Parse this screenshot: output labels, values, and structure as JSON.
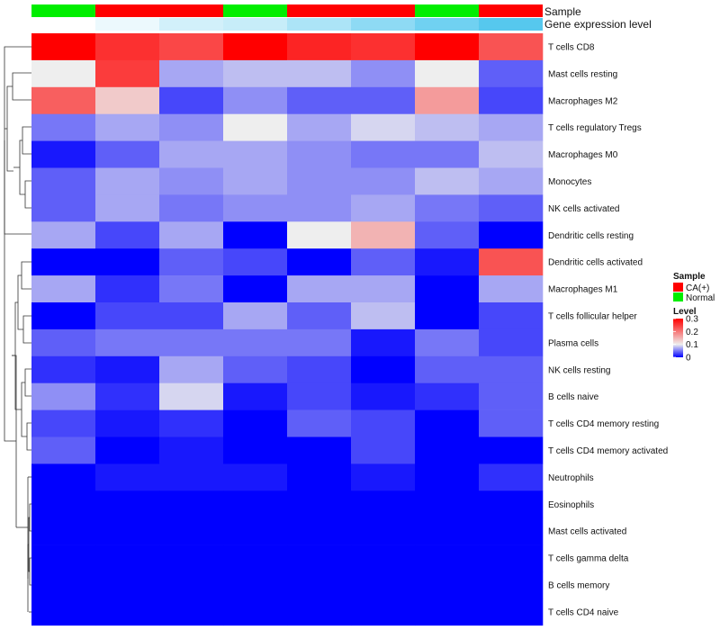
{
  "chart_data": {
    "type": "heatmap",
    "annotations": {
      "sample_title": "Sample",
      "gene_title": "Gene expression level",
      "samples": [
        "Normal",
        "CA(+)",
        "CA(+)",
        "Normal",
        "CA(+)",
        "CA(+)",
        "Normal",
        "CA(+)"
      ],
      "gene_expression_level": [
        0.0,
        0.05,
        0.12,
        0.15,
        0.22,
        0.3,
        0.38,
        0.45
      ]
    },
    "rows": [
      "T cells CD8",
      "Mast cells resting",
      "Macrophages M2",
      "T cells regulatory  Tregs",
      "Macrophages M0",
      "Monocytes",
      "NK cells activated",
      "Dendritic cells resting",
      "Dendritic cells activated",
      "Macrophages M1",
      "T cells follicular helper",
      "Plasma cells",
      "NK cells resting",
      "B cells naive",
      "T cells CD4 memory resting",
      "T cells CD4 memory activated",
      "Neutrophils",
      "Eosinophils",
      "Mast cells activated",
      "T cells gamma delta",
      "B cells memory",
      "T cells CD4 naive"
    ],
    "values": [
      [
        0.3,
        0.26,
        0.24,
        0.3,
        0.27,
        0.26,
        0.3,
        0.23
      ],
      [
        0.1,
        0.25,
        0.07,
        0.08,
        0.08,
        0.06,
        0.1,
        0.04
      ],
      [
        0.22,
        0.13,
        0.03,
        0.06,
        0.04,
        0.04,
        0.17,
        0.03
      ],
      [
        0.05,
        0.07,
        0.06,
        0.1,
        0.07,
        0.09,
        0.08,
        0.07
      ],
      [
        0.01,
        0.04,
        0.07,
        0.07,
        0.06,
        0.05,
        0.05,
        0.08
      ],
      [
        0.04,
        0.07,
        0.06,
        0.07,
        0.06,
        0.06,
        0.08,
        0.07
      ],
      [
        0.04,
        0.07,
        0.05,
        0.06,
        0.06,
        0.07,
        0.05,
        0.04
      ],
      [
        0.07,
        0.03,
        0.07,
        0.0,
        0.1,
        0.15,
        0.04,
        0.0
      ],
      [
        0.0,
        0.0,
        0.04,
        0.03,
        0.0,
        0.04,
        0.01,
        0.23
      ],
      [
        0.07,
        0.02,
        0.05,
        0.0,
        0.07,
        0.07,
        0.0,
        0.07
      ],
      [
        0.0,
        0.03,
        0.03,
        0.07,
        0.04,
        0.08,
        0.0,
        0.03
      ],
      [
        0.04,
        0.05,
        0.05,
        0.05,
        0.05,
        0.01,
        0.05,
        0.03
      ],
      [
        0.02,
        0.01,
        0.07,
        0.04,
        0.03,
        0.0,
        0.04,
        0.04
      ],
      [
        0.06,
        0.02,
        0.09,
        0.01,
        0.03,
        0.01,
        0.02,
        0.04
      ],
      [
        0.03,
        0.01,
        0.02,
        0.0,
        0.04,
        0.03,
        0.0,
        0.04
      ],
      [
        0.04,
        0.0,
        0.01,
        0.0,
        0.0,
        0.03,
        0.0,
        0.0
      ],
      [
        0.0,
        0.01,
        0.01,
        0.01,
        0.0,
        0.01,
        0.0,
        0.02
      ],
      [
        0.0,
        0.0,
        0.0,
        0.0,
        0.0,
        0.0,
        0.0,
        0.0
      ],
      [
        0.0,
        0.0,
        0.0,
        0.0,
        0.0,
        0.0,
        0.0,
        0.0
      ],
      [
        0.0,
        0.0,
        0.0,
        0.0,
        0.0,
        0.0,
        0.0,
        0.0
      ],
      [
        0.0,
        0.0,
        0.0,
        0.0,
        0.0,
        0.0,
        0.0,
        0.0
      ],
      [
        0.0,
        0.0,
        0.0,
        0.0,
        0.0,
        0.0,
        0.0,
        0.0
      ]
    ],
    "color_scale": {
      "low": "#0000ff",
      "mid": "#eeeeee",
      "high": "#ff0000",
      "min": 0,
      "mid_value": 0.1,
      "max": 0.3
    },
    "sample_colors": {
      "CA(+)": "#ff0000",
      "Normal": "#00ee00"
    },
    "gene_colors": {
      "low": "#ffffff",
      "high": "#56c8ee"
    },
    "legend": {
      "sample_title": "Sample",
      "sample_items": [
        "CA(+)",
        "Normal"
      ],
      "level_title": "Level",
      "level_ticks": [
        "0.3",
        "0.2",
        "0.1",
        "0"
      ],
      "level_tick_values": [
        0.3,
        0.2,
        0.1,
        0.0
      ],
      "position": "right"
    }
  }
}
